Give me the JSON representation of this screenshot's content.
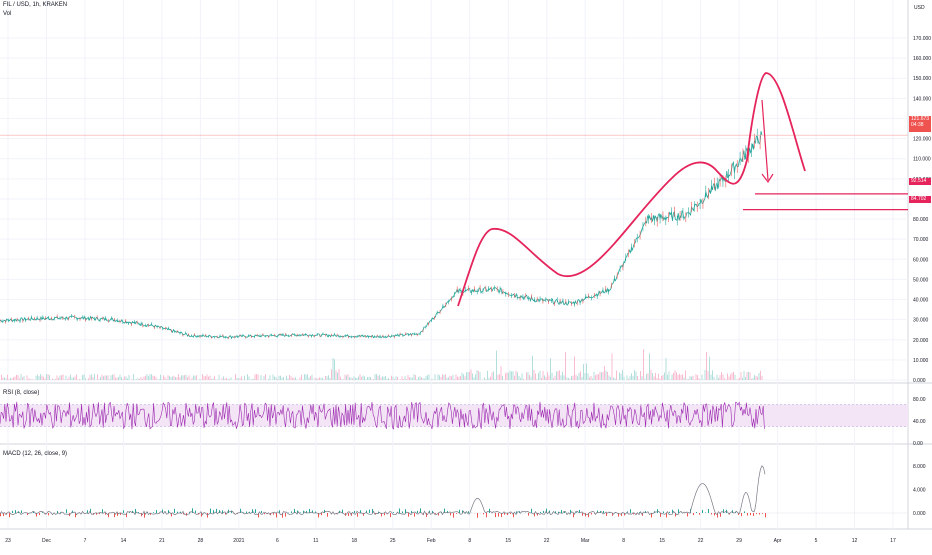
{
  "header": {
    "symbol_line": "FIL / USD, 1h, KRAKEN",
    "volume_label": "Vol",
    "currency": "USD"
  },
  "price_axis": {
    "ticks": [
      "170.000",
      "160.000",
      "150.000",
      "140.000",
      "130.000",
      "120.000",
      "110.000",
      "100.000",
      "90.000",
      "80.000",
      "70.000",
      "60.000",
      "50.000",
      "40.000",
      "30.000",
      "20.000",
      "10.000",
      "0.000"
    ]
  },
  "price_badges": {
    "last_price": "121.673",
    "countdown": "04:38",
    "level_upper": "92.514",
    "level_lower": "84.702"
  },
  "rsi": {
    "label": "RSI (8, close)",
    "ticks": [
      "80.00",
      "40.00",
      "0.00"
    ]
  },
  "macd": {
    "label": "MACD (12, 26, close, 9)",
    "ticks": [
      "8.000",
      "4.000",
      "0.000"
    ]
  },
  "time_axis": {
    "ticks": [
      "23",
      "Dec",
      "7",
      "14",
      "21",
      "28",
      "2021",
      "6",
      "11",
      "18",
      "25",
      "Feb",
      "8",
      "15",
      "22",
      "Mar",
      "8",
      "15",
      "22",
      "29",
      "Apr",
      "5",
      "12",
      "17"
    ]
  },
  "colors": {
    "up": "#26a69a",
    "down": "#ef5350",
    "drawing": "#e5245b",
    "rsi_line": "#9c27b0",
    "rsi_band": "#f3e5f5",
    "macd_line": "#787b86",
    "price_line": "#f7a9a8"
  },
  "chart_data": {
    "type": "line",
    "title": "FIL / USD, 1h, KRAKEN",
    "x": [
      "23",
      "Dec",
      "7",
      "14",
      "21",
      "28",
      "2021",
      "6",
      "11",
      "18",
      "25",
      "Feb",
      "8",
      "15",
      "22",
      "Mar",
      "8",
      "15",
      "22",
      "29",
      "Apr"
    ],
    "series": [
      {
        "name": "FIL / USD",
        "values": [
          29.5,
          30.5,
          31,
          30,
          27,
          22,
          21.5,
          22,
          22.5,
          22,
          21.5,
          23,
          44,
          45,
          40,
          38,
          45,
          80,
          82,
          100,
          121.7
        ]
      }
    ],
    "ylim": [
      0,
      175
    ],
    "ylabel": "USD",
    "annotations": {
      "horizontal_levels": [
        92.514,
        84.702
      ],
      "pattern": "hand-drawn head and shoulders outline with down arrow"
    }
  }
}
